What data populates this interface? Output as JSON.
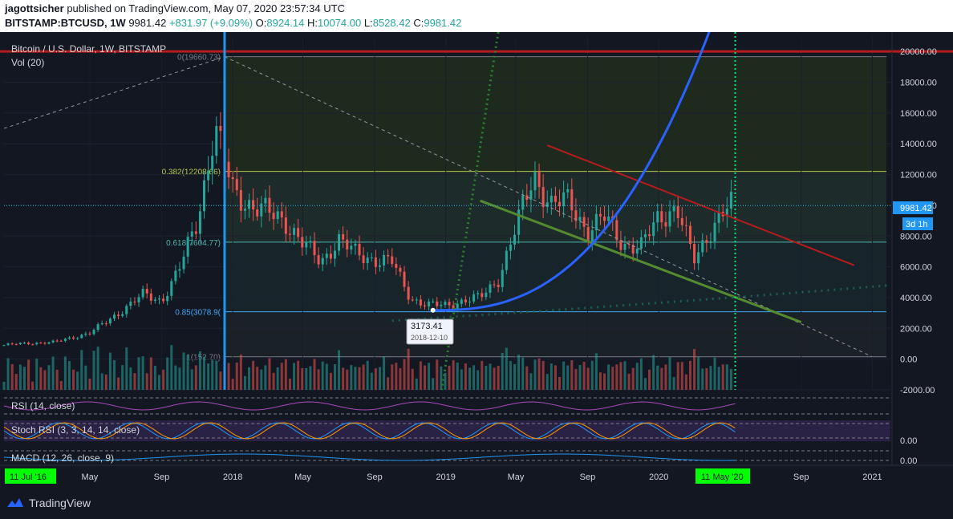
{
  "header": {
    "author": "jagottsicher",
    "published_text": "published on TradingView.com, May 07, 2020 23:57:34 UTC",
    "symbol": "BITSTAMP:BTCUSD, 1W",
    "last": "9981.42",
    "change": "+831.97 (+9.09%)",
    "o_label": "O:",
    "o": "8924.14",
    "h_label": "H:",
    "h": "10074.00",
    "l_label": "L:",
    "l": "8528.42",
    "c_label": "C:",
    "c": "9981.42"
  },
  "pane": {
    "title": "Bitcoin / U.S. Dollar, 1W, BITSTAMP",
    "vol_label": "Vol (20)",
    "rsi_label": "RSI (14, close)",
    "stoch_label": "Stoch RSI (3, 3, 14, 14, close)",
    "macd_label": "MACD (12, 26, close, 9)",
    "rsi_axis": "",
    "stoch_axis": "0.00",
    "macd_axis": "0.00"
  },
  "price_badge": {
    "value": "9981.42",
    "countdown": "3d 1h"
  },
  "fib_labels": [
    "0(19660.73)",
    "0.382(12208.66)",
    "0.618(7604.77)",
    "0.85(3078.9(",
    "1(152.70)"
  ],
  "callout": {
    "price": "3173.41",
    "date": "2018-12-10"
  },
  "time_axis": {
    "labels": [
      "May",
      "Sep",
      "2018",
      "May",
      "Sep",
      "2019",
      "May",
      "Sep",
      "2020",
      "Sep",
      "2021"
    ],
    "start_badge": "11 Jul '16",
    "end_badge": "11 May '20"
  },
  "footer": {
    "brand": "TradingView"
  },
  "colors": {
    "up": "#26a69a",
    "down": "#ef5350",
    "fib_bg": "#1e2b23",
    "blue_curve": "#2962ff",
    "red_line": "#b71c1c",
    "green_line": "#558b2f",
    "badge": "#2196f3",
    "time_badge": "#00ff00"
  },
  "chart_data": {
    "type": "candlestick",
    "title": "Bitcoin / U.S. Dollar, 1W, BITSTAMP",
    "ylim": [
      -2000,
      21000
    ],
    "y_ticks": [
      -2000,
      0,
      2000,
      4000,
      6000,
      8000,
      10000,
      12000,
      14000,
      16000,
      18000,
      20000
    ],
    "x_range": [
      "2016-12-05",
      "2021-02-01"
    ],
    "close_series": {
      "dates": [
        "2016-12",
        "2017-01",
        "2017-03",
        "2017-05",
        "2017-06",
        "2017-08",
        "2017-09",
        "2017-10",
        "2017-11",
        "2017-12",
        "2018-01",
        "2018-02",
        "2018-04",
        "2018-05",
        "2018-06",
        "2018-07",
        "2018-08",
        "2018-09",
        "2018-10",
        "2018-11",
        "2018-12",
        "2019-01",
        "2019-02",
        "2019-03",
        "2019-04",
        "2019-05",
        "2019-06",
        "2019-07",
        "2019-08",
        "2019-09",
        "2019-10",
        "2019-11",
        "2019-12",
        "2020-01",
        "2020-02",
        "2020-03",
        "2020-04",
        "2020-05"
      ],
      "close": [
        900,
        1000,
        1100,
        1700,
        2500,
        4200,
        3800,
        5800,
        9000,
        15000,
        11000,
        10000,
        9000,
        7500,
        6300,
        7800,
        6800,
        6500,
        6300,
        4000,
        3500,
        3500,
        3800,
        4000,
        5200,
        8500,
        12000,
        10000,
        10300,
        8300,
        9200,
        7500,
        7200,
        9300,
        9800,
        6400,
        8600,
        9981.42
      ]
    },
    "reference_levels": [
      {
        "label": "0",
        "value": 19660.73
      },
      {
        "label": "0.382",
        "value": 12208.66
      },
      {
        "label": "0.618",
        "value": 7604.77
      },
      {
        "label": "0.85",
        "value": 3078.9
      },
      {
        "label": "1",
        "value": 152.7
      }
    ],
    "horizontal_resistance": 20000,
    "annotation": {
      "price": 3173.41,
      "date": "2018-12-10"
    },
    "last_price": 9981.42
  }
}
